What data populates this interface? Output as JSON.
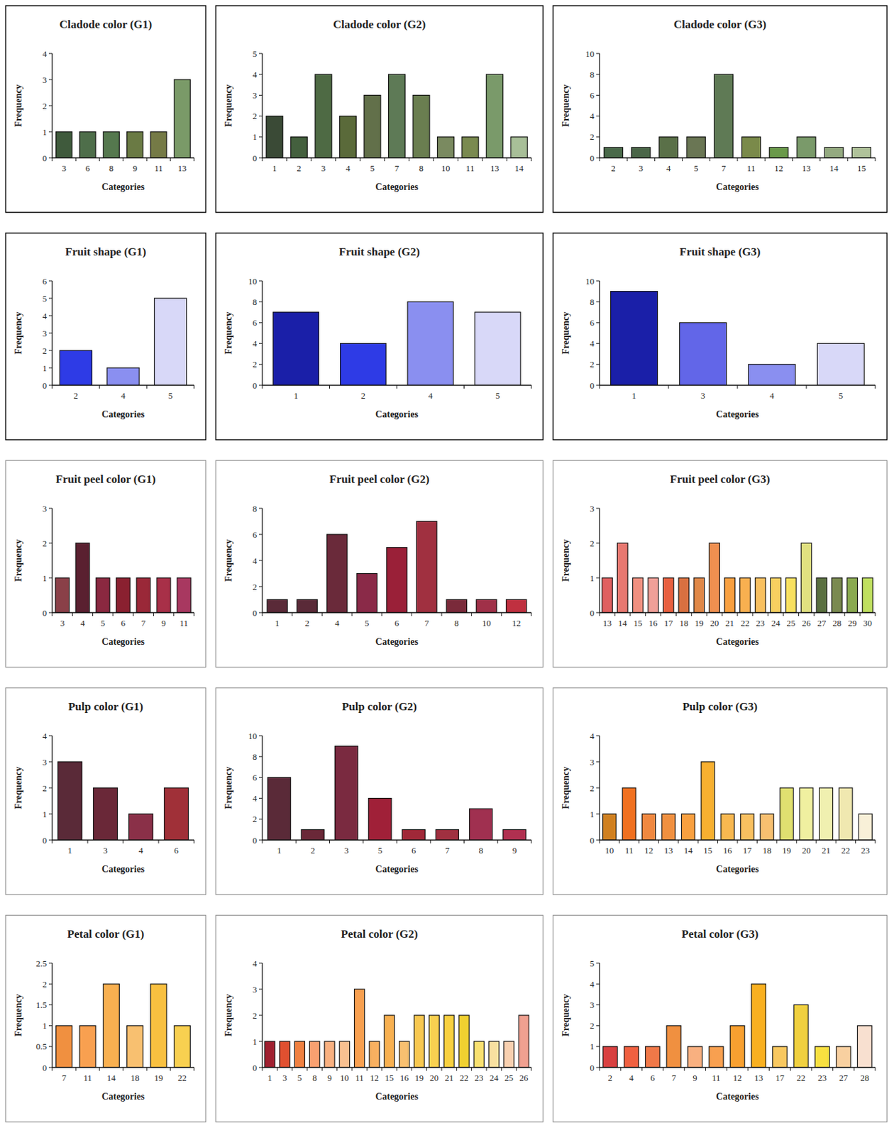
{
  "chart_data": [
    {
      "type": "bar",
      "title": "Cladode color (G1)",
      "x_label": "Categories",
      "y_label": "Frequency",
      "categories": [
        "3",
        "6",
        "8",
        "9",
        "11",
        "13"
      ],
      "values": [
        1,
        1,
        1,
        1,
        1,
        3
      ],
      "colors": [
        "#3f5a3c",
        "#4e6e4a",
        "#55784e",
        "#6a7a44",
        "#757a46",
        "#7a9a68"
      ],
      "ylim": [
        0,
        4
      ],
      "yticks": [
        0,
        1,
        2,
        3,
        4
      ]
    },
    {
      "type": "bar",
      "title": "Cladode color (G2)",
      "x_label": "Categories",
      "y_label": "Frequency",
      "categories": [
        "1",
        "2",
        "3",
        "4",
        "5",
        "7",
        "8",
        "10",
        "11",
        "13",
        "14"
      ],
      "values": [
        2,
        1,
        4,
        2,
        3,
        4,
        3,
        1,
        1,
        4,
        1
      ],
      "colors": [
        "#3a4a36",
        "#44603e",
        "#4e6a44",
        "#5a6a3a",
        "#62704a",
        "#5e7a56",
        "#6a7e50",
        "#7a8a60",
        "#7a8a50",
        "#7a9a6a",
        "#a8bf98"
      ],
      "ylim": [
        0,
        5
      ],
      "yticks": [
        0,
        1,
        2,
        3,
        4,
        5
      ]
    },
    {
      "type": "bar",
      "title": "Cladode color (G3)",
      "x_label": "Categories",
      "y_label": "Frequency",
      "categories": [
        "2",
        "3",
        "4",
        "5",
        "7",
        "11",
        "12",
        "13",
        "14",
        "15"
      ],
      "values": [
        1,
        1,
        2,
        2,
        8,
        2,
        1,
        2,
        1,
        1
      ],
      "colors": [
        "#4a6a4a",
        "#4a6648",
        "#5a7048",
        "#6a7654",
        "#5f7a55",
        "#7a8a4a",
        "#6a9a4a",
        "#7a9a6a",
        "#94aa80",
        "#b0c29a"
      ],
      "ylim": [
        0,
        10
      ],
      "yticks": [
        0,
        2,
        4,
        6,
        8,
        10
      ]
    },
    {
      "type": "bar",
      "title": "Fruit shape (G1)",
      "x_label": "Categories",
      "y_label": "Frequency",
      "categories": [
        "2",
        "4",
        "5"
      ],
      "values": [
        2,
        1,
        5
      ],
      "colors": [
        "#2e3be6",
        "#8a8ff0",
        "#d8d8f8"
      ],
      "ylim": [
        0,
        6
      ],
      "yticks": [
        0,
        1,
        2,
        3,
        4,
        5,
        6
      ]
    },
    {
      "type": "bar",
      "title": "Fruit shape (G2)",
      "x_label": "Categories",
      "y_label": "Frequency",
      "categories": [
        "1",
        "2",
        "4",
        "5"
      ],
      "values": [
        7,
        4,
        8,
        7
      ],
      "colors": [
        "#1a1fa8",
        "#2e3be6",
        "#8a8ff0",
        "#d8d8f8"
      ],
      "ylim": [
        0,
        10
      ],
      "yticks": [
        0,
        2,
        4,
        6,
        8,
        10
      ]
    },
    {
      "type": "bar",
      "title": "Fruit shape (G3)",
      "x_label": "Categories",
      "y_label": "Frequency",
      "categories": [
        "1",
        "3",
        "4",
        "5"
      ],
      "values": [
        9,
        6,
        2,
        4
      ],
      "colors": [
        "#1a1fa8",
        "#6266e8",
        "#8a8ff0",
        "#d8d8f8"
      ],
      "ylim": [
        0,
        10
      ],
      "yticks": [
        0,
        2,
        4,
        6,
        8,
        10
      ]
    },
    {
      "type": "bar",
      "title": "Fruit peel color (G1)",
      "x_label": "Categories",
      "y_label": "Frequency",
      "categories": [
        "3",
        "4",
        "5",
        "6",
        "7",
        "9",
        "11"
      ],
      "values": [
        1,
        2,
        1,
        1,
        1,
        1,
        1
      ],
      "colors": [
        "#8a4048",
        "#5a2030",
        "#8a2840",
        "#8a2030",
        "#9a2838",
        "#a83048",
        "#a83860"
      ],
      "ylim": [
        0,
        3
      ],
      "yticks": [
        0,
        1,
        2,
        3
      ]
    },
    {
      "type": "bar",
      "title": "Fruit peel color (G2)",
      "x_label": "Categories",
      "y_label": "Frequency",
      "categories": [
        "1",
        "2",
        "4",
        "5",
        "6",
        "7",
        "8",
        "10",
        "12"
      ],
      "values": [
        1,
        1,
        6,
        3,
        5,
        7,
        1,
        1,
        1
      ],
      "colors": [
        "#5a2a38",
        "#5a2a38",
        "#6a2a3a",
        "#8a2a48",
        "#9a2038",
        "#a03040",
        "#7a2a3a",
        "#a03048",
        "#c03040"
      ],
      "ylim": [
        0,
        8
      ],
      "yticks": [
        0,
        2,
        4,
        6,
        8
      ]
    },
    {
      "type": "bar",
      "title": "Fruit peel color (G3)",
      "x_label": "Categories",
      "y_label": "Frequency",
      "categories": [
        "13",
        "14",
        "15",
        "16",
        "17",
        "18",
        "19",
        "20",
        "21",
        "22",
        "23",
        "24",
        "25",
        "26",
        "27",
        "28",
        "29",
        "30"
      ],
      "values": [
        1,
        2,
        1,
        1,
        1,
        1,
        1,
        2,
        1,
        1,
        1,
        1,
        1,
        2,
        1,
        1,
        1,
        1
      ],
      "colors": [
        "#e06060",
        "#e87870",
        "#f09080",
        "#f0a098",
        "#e86040",
        "#d87040",
        "#e08848",
        "#f09050",
        "#f8a040",
        "#f8b050",
        "#f8c060",
        "#f8d060",
        "#f8e060",
        "#e0e080",
        "#5a7040",
        "#7a8a50",
        "#8aaa50",
        "#c0e060"
      ],
      "ylim": [
        0,
        3
      ],
      "yticks": [
        0,
        1,
        2,
        3
      ]
    },
    {
      "type": "bar",
      "title": "Pulp color (G1)",
      "x_label": "Categories",
      "y_label": "Frequency",
      "categories": [
        "1",
        "3",
        "4",
        "6"
      ],
      "values": [
        3,
        2,
        1,
        2
      ],
      "colors": [
        "#5a2a38",
        "#6a2838",
        "#8a3048",
        "#a03038"
      ],
      "ylim": [
        0,
        4
      ],
      "yticks": [
        0,
        1,
        2,
        3,
        4
      ]
    },
    {
      "type": "bar",
      "title": "Pulp color (G2)",
      "x_label": "Categories",
      "y_label": "Frequency",
      "categories": [
        "1",
        "2",
        "3",
        "5",
        "6",
        "7",
        "8",
        "9"
      ],
      "values": [
        6,
        1,
        9,
        4,
        1,
        1,
        3,
        1
      ],
      "colors": [
        "#5a2a38",
        "#6a2838",
        "#7a2a40",
        "#a02038",
        "#a02838",
        "#a03040",
        "#a03050",
        "#b03050"
      ],
      "ylim": [
        0,
        10
      ],
      "yticks": [
        0,
        2,
        4,
        6,
        8,
        10
      ]
    },
    {
      "type": "bar",
      "title": "Pulp color (G3)",
      "x_label": "Categories",
      "y_label": "Frequency",
      "categories": [
        "10",
        "11",
        "12",
        "13",
        "14",
        "15",
        "16",
        "17",
        "18",
        "19",
        "20",
        "21",
        "22",
        "23"
      ],
      "values": [
        1,
        2,
        1,
        1,
        1,
        3,
        1,
        1,
        1,
        2,
        2,
        2,
        2,
        1
      ],
      "colors": [
        "#d08020",
        "#f07020",
        "#f08840",
        "#f09040",
        "#f8a040",
        "#f8b030",
        "#f8b850",
        "#f8c060",
        "#f8c070",
        "#e0e070",
        "#f0f0a0",
        "#f0f0b0",
        "#f0e8b0",
        "#f8f0d8"
      ],
      "ylim": [
        0,
        4
      ],
      "yticks": [
        0,
        1,
        2,
        3,
        4
      ]
    },
    {
      "type": "bar",
      "title": "Petal color (G1)",
      "x_label": "Categories",
      "y_label": "Frequency",
      "categories": [
        "7",
        "11",
        "14",
        "18",
        "19",
        "22"
      ],
      "values": [
        1,
        1,
        2,
        1,
        2,
        1
      ],
      "colors": [
        "#f09040",
        "#f8a050",
        "#f8b050",
        "#f8c070",
        "#f8c040",
        "#f8d050"
      ],
      "ylim": [
        0,
        2.5
      ],
      "yticks": [
        0,
        0.5,
        1,
        1.5,
        2,
        2.5
      ]
    },
    {
      "type": "bar",
      "title": "Petal color (G2)",
      "x_label": "Categories",
      "y_label": "Frequency",
      "categories": [
        "1",
        "3",
        "5",
        "8",
        "9",
        "10",
        "11",
        "12",
        "15",
        "16",
        "19",
        "20",
        "21",
        "22",
        "23",
        "24",
        "25",
        "26"
      ],
      "values": [
        1,
        1,
        1,
        1,
        1,
        1,
        3,
        1,
        2,
        1,
        2,
        2,
        2,
        2,
        1,
        1,
        1,
        2
      ],
      "colors": [
        "#a02030",
        "#e05030",
        "#f08040",
        "#f8a070",
        "#f8b080",
        "#f8c090",
        "#f8a050",
        "#f8b060",
        "#f8b050",
        "#f8c070",
        "#f8c850",
        "#f8d050",
        "#f8d040",
        "#f0d030",
        "#f8e070",
        "#f8e0a0",
        "#f8d0b0",
        "#f0a090"
      ],
      "ylim": [
        0,
        4
      ],
      "yticks": [
        0,
        1,
        2,
        3,
        4
      ]
    },
    {
      "type": "bar",
      "title": "Petal color (G3)",
      "x_label": "Categories",
      "y_label": "Frequency",
      "categories": [
        "2",
        "4",
        "6",
        "7",
        "9",
        "11",
        "12",
        "13",
        "17",
        "22",
        "23",
        "27",
        "28"
      ],
      "values": [
        1,
        1,
        1,
        2,
        1,
        1,
        2,
        4,
        1,
        3,
        1,
        1,
        2
      ],
      "colors": [
        "#d84040",
        "#f06040",
        "#f07848",
        "#f09040",
        "#f8b080",
        "#f8a050",
        "#f8a030",
        "#f8b020",
        "#f8c860",
        "#f0d040",
        "#f8e040",
        "#f8d0a0",
        "#f8e0d0"
      ],
      "ylim": [
        0,
        5
      ],
      "yticks": [
        0,
        1,
        2,
        3,
        4,
        5
      ]
    }
  ]
}
